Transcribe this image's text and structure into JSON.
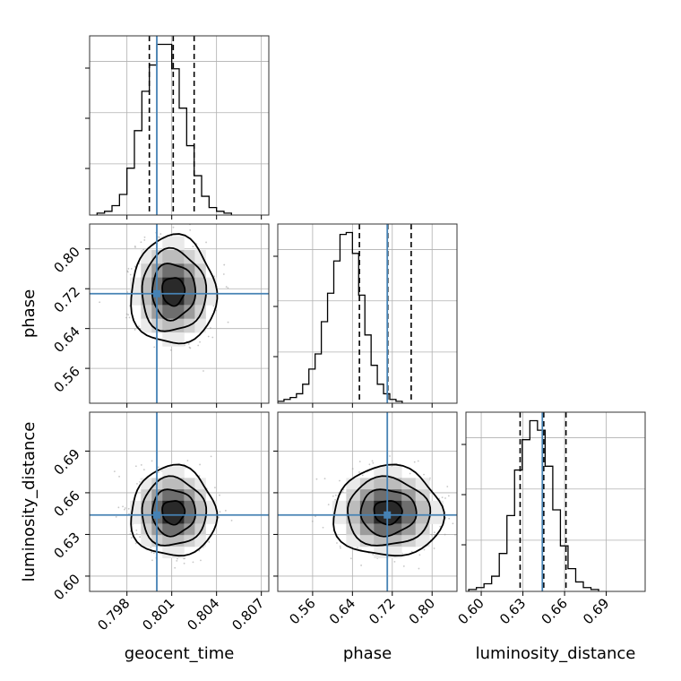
{
  "chart_data": {
    "type": "corner",
    "parameters": [
      {
        "name": "geocent_time",
        "label": "geocent_time",
        "range": [
          0.7955,
          0.8075
        ],
        "ticks": [
          0.798,
          0.801,
          0.804,
          0.807
        ],
        "tick_labels": [
          "0.798",
          "0.801",
          "0.804",
          "0.807"
        ],
        "truth": 0.8,
        "quantiles": [
          0.7995,
          0.8011,
          0.8025
        ],
        "histogram": {
          "bin_start": 0.796,
          "bin_width": 0.0005,
          "counts": [
            1,
            2,
            5,
            11,
            25,
            45,
            66,
            80,
            91,
            91,
            78,
            57,
            37,
            21,
            10,
            4,
            2,
            1
          ]
        }
      },
      {
        "name": "phase",
        "label": "phase",
        "range": [
          0.49,
          0.85
        ],
        "ticks": [
          0.56,
          0.64,
          0.72,
          0.8
        ],
        "tick_labels": [
          "0.56",
          "0.64",
          "0.72",
          "0.80"
        ],
        "truth": 0.71,
        "quantiles": [
          0.654,
          0.711,
          0.758
        ],
        "histogram": {
          "bin_start": 0.49,
          "bin_width": 0.0125,
          "counts": [
            1,
            2,
            3,
            5,
            10,
            18,
            26,
            43,
            58,
            75,
            89,
            90,
            79,
            57,
            36,
            20,
            10,
            5,
            2,
            1
          ]
        }
      },
      {
        "name": "luminosity_distance",
        "label": "luminosity_distance",
        "range": [
          0.589,
          0.718
        ],
        "ticks": [
          0.6,
          0.63,
          0.66,
          0.69
        ],
        "tick_labels": [
          "0.60",
          "0.63",
          "0.66",
          "0.69"
        ],
        "truth": 0.644,
        "quantiles": [
          0.628,
          0.645,
          0.661
        ],
        "histogram": {
          "bin_start": 0.591,
          "bin_width": 0.0055,
          "counts": [
            1,
            2,
            4,
            8,
            20,
            40,
            64,
            80,
            90,
            85,
            66,
            43,
            24,
            12,
            5,
            2,
            1
          ]
        }
      }
    ],
    "contour_panels": [
      {
        "x": "geocent_time",
        "y": "phase",
        "center": [
          0.8011,
          0.715
        ],
        "contours": [
          {
            "level": 0.95,
            "half_widths": [
              0.00285,
              0.109
            ]
          },
          {
            "level": 0.86,
            "half_widths": [
              0.00215,
              0.082
            ]
          },
          {
            "level": 0.68,
            "half_widths": [
              0.00145,
              0.056
            ]
          },
          {
            "level": 0.39,
            "half_widths": [
              0.00075,
              0.028
            ]
          }
        ]
      },
      {
        "x": "geocent_time",
        "y": "luminosity_distance",
        "center": [
          0.8011,
          0.646
        ],
        "contours": [
          {
            "level": 0.95,
            "half_widths": [
              0.00285,
              0.0325
            ]
          },
          {
            "level": 0.86,
            "half_widths": [
              0.00215,
              0.0245
            ]
          },
          {
            "level": 0.68,
            "half_widths": [
              0.00145,
              0.0165
            ]
          },
          {
            "level": 0.39,
            "half_widths": [
              0.00075,
              0.0085
            ]
          }
        ]
      },
      {
        "x": "phase",
        "y": "luminosity_distance",
        "center": [
          0.711,
          0.646
        ],
        "contours": [
          {
            "level": 0.95,
            "half_widths": [
              0.11,
              0.0325
            ]
          },
          {
            "level": 0.86,
            "half_widths": [
              0.083,
              0.0245
            ]
          },
          {
            "level": 0.68,
            "half_widths": [
              0.056,
              0.0165
            ]
          },
          {
            "level": 0.39,
            "half_widths": [
              0.028,
              0.0085
            ]
          }
        ]
      }
    ],
    "grid": true,
    "colors": {
      "truth_line": "#4682b4",
      "histogram": "#000000",
      "quantile_line": "#000000",
      "grid": "#b0b0b0",
      "points": "#999999"
    }
  }
}
